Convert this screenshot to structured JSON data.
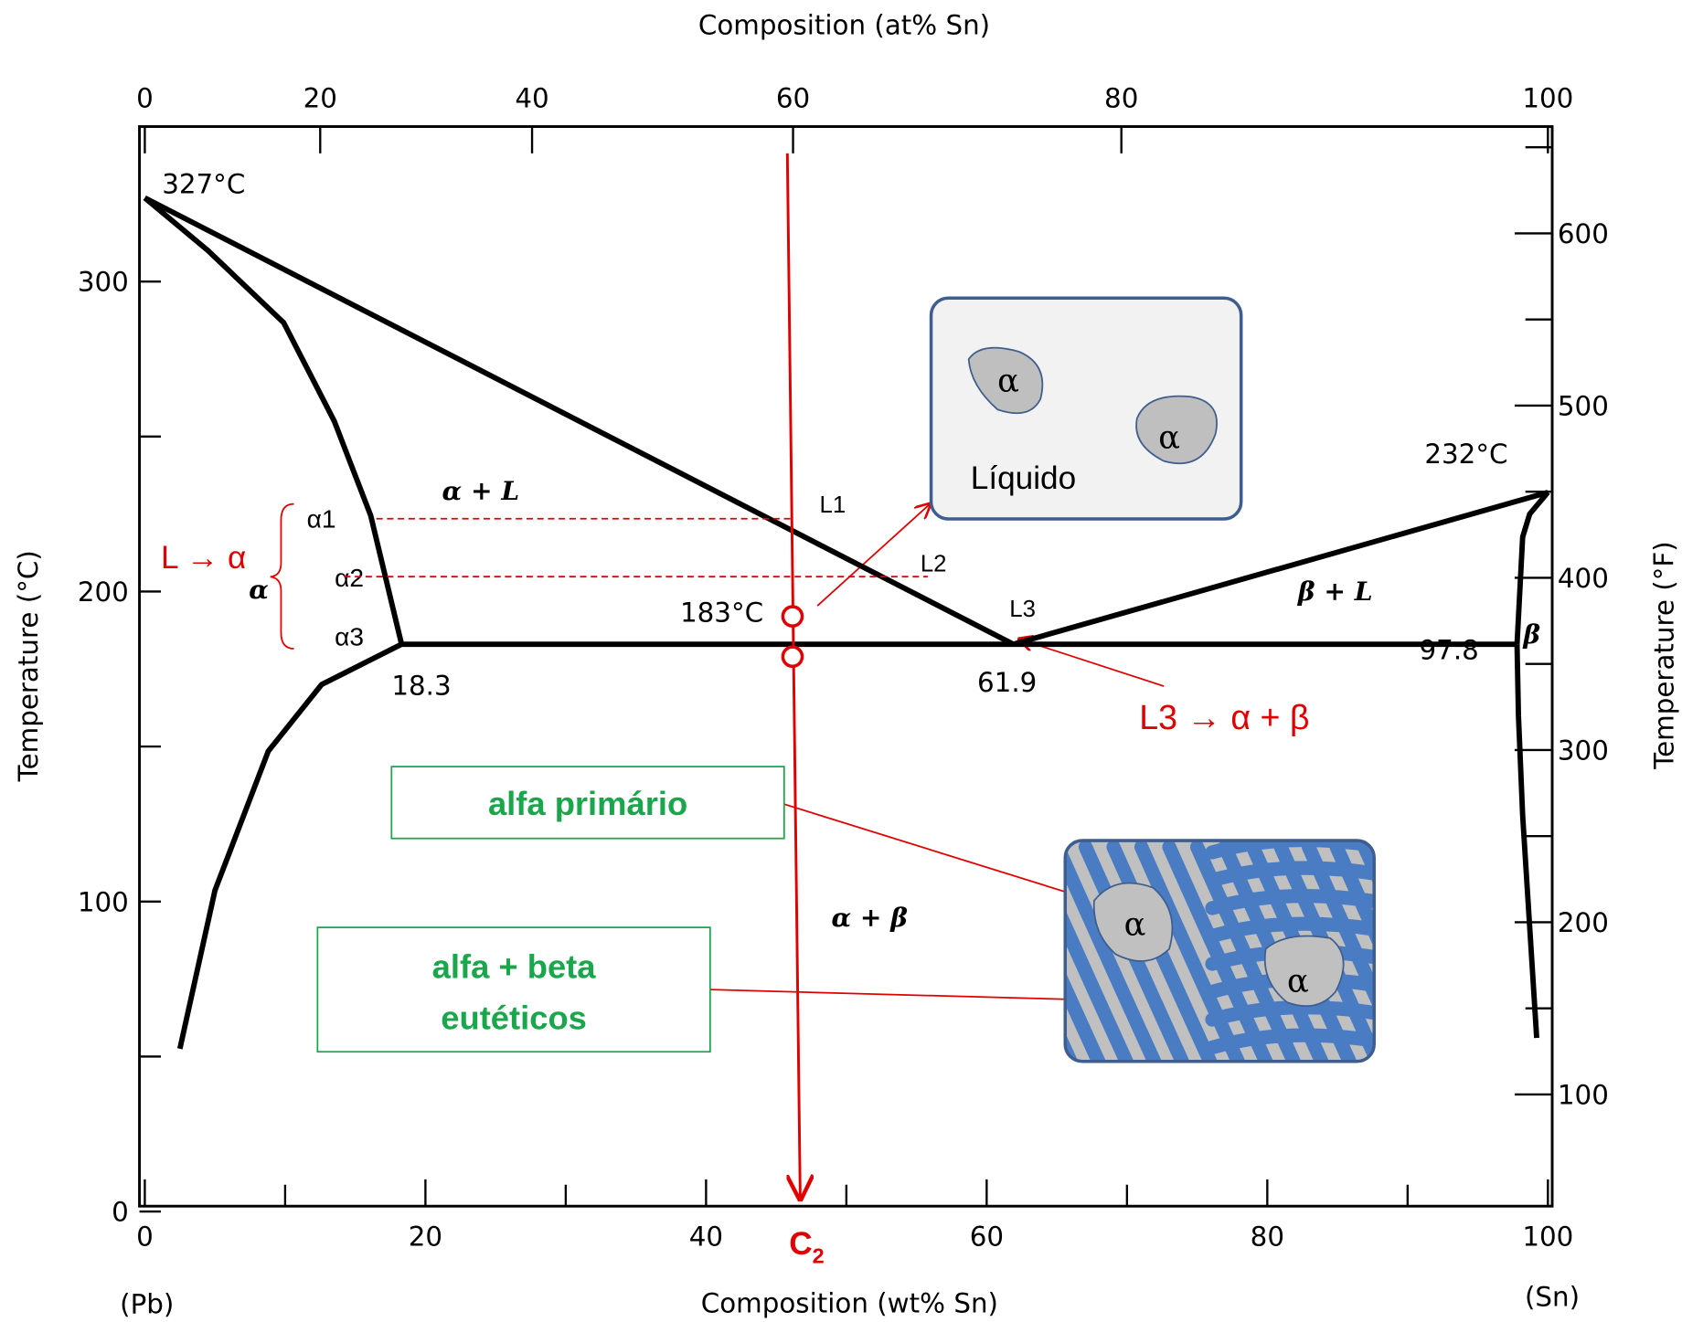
{
  "chart_data": {
    "type": "phase_diagram",
    "x_label": "Composition (wt% Sn)",
    "x2_label": "Composition (at% Sn)",
    "y_label": "Temperature (°C)",
    "y2_label": "Temperature (°F)",
    "xlim": [
      0,
      100
    ],
    "xticks": [
      0,
      20,
      40,
      60,
      80,
      100
    ],
    "xminorticks": [
      10,
      30,
      50,
      70,
      90
    ],
    "ylim": [
      0,
      350
    ],
    "yticks": [
      0,
      100,
      200,
      300
    ],
    "yminorticks": [
      50,
      150,
      250
    ],
    "x2ticks": [
      0,
      20,
      40,
      60,
      80,
      100
    ],
    "x2tick_positions": [
      0,
      12.5,
      27.6,
      46.2,
      69.6,
      100
    ],
    "y2lim": [
      32,
      662
    ],
    "y2ticks": [
      100,
      200,
      300,
      400,
      500,
      600
    ],
    "y2minorticks": [
      150,
      250,
      350,
      450,
      550,
      650
    ],
    "end_labels": [
      "(Pb)",
      "(Sn)"
    ],
    "line_color": "#000000",
    "boundaries": [
      {
        "x": [
          0,
          61.9
        ],
        "y": [
          327,
          183
        ]
      },
      {
        "x": [
          61.9,
          100
        ],
        "y": [
          183,
          232
        ]
      },
      {
        "x": [
          18.3,
          97.8
        ],
        "y": [
          183,
          183
        ]
      },
      {
        "x": [
          0,
          4.5,
          9.9,
          13.5,
          16.1,
          18.3
        ],
        "y": [
          327,
          310,
          286.7,
          255,
          224.5,
          183
        ]
      },
      {
        "x": [
          18.3,
          12.6,
          8.8,
          5.0,
          2.5
        ],
        "y": [
          183,
          170,
          148.5,
          103.6,
          52.5
        ]
      },
      {
        "x": [
          100,
          98.7,
          98.2,
          97.8
        ],
        "y": [
          232,
          225,
          217.6,
          183
        ]
      },
      {
        "x": [
          97.8,
          97.9,
          98.2,
          99.2
        ],
        "y": [
          183,
          160,
          127.8,
          56
        ]
      }
    ],
    "point_labels": [
      "327°C",
      "183°C",
      "232°C",
      "18.3",
      "61.9",
      "97.8"
    ],
    "phase_labels": [
      "α + L",
      "β + L",
      "α + β",
      "α",
      "β"
    ],
    "composition": {
      "symbol": "C",
      "subscript": "2",
      "x": 46.1,
      "color": "#e00000"
    },
    "tie_lines": {
      "y": [
        223.5,
        204.8
      ],
      "x_start": [
        16.5,
        14.2
      ],
      "x_end": [
        46.1,
        55.8
      ]
    },
    "cooling_points": [
      192,
      179
    ],
    "tie_labels": [
      "α1",
      "α2",
      "α3",
      "L1",
      "L2",
      "L3"
    ],
    "reactions": [
      "L → α",
      "L3 → α + β"
    ],
    "insets": {
      "liquid": {
        "label": "Líquido",
        "grains": [
          "α",
          "α"
        ]
      },
      "solid": {
        "grains": [
          "α",
          "α"
        ]
      }
    },
    "callouts": [
      "alfa primário",
      "alfa + beta",
      "eutéticos"
    ]
  }
}
